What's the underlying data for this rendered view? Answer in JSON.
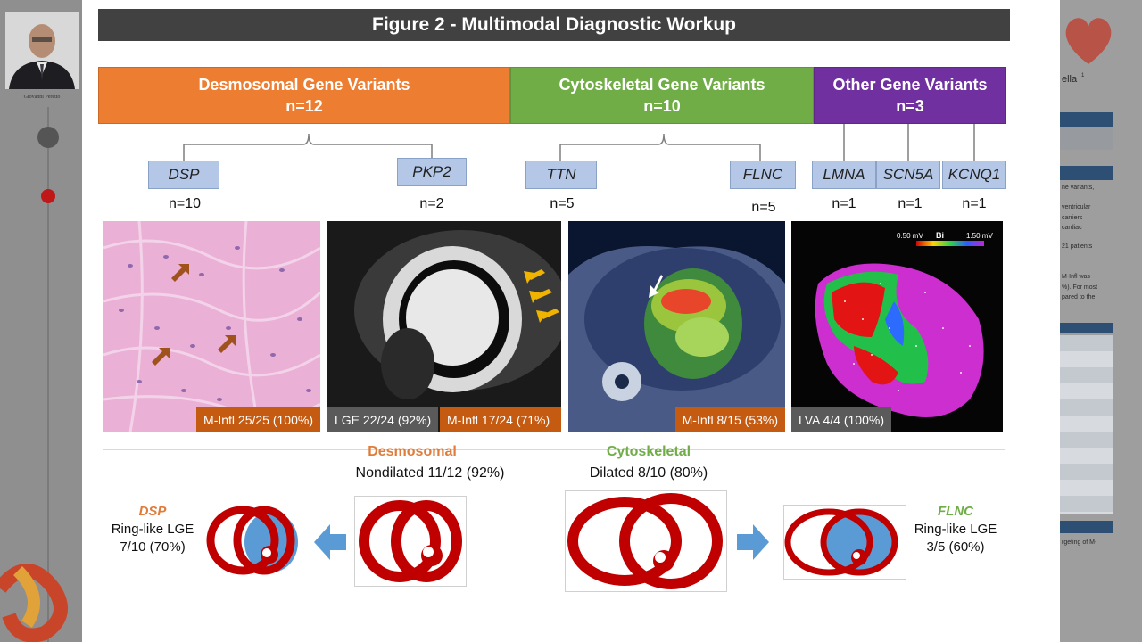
{
  "sidebar": {
    "presenter_name": "Giovanni Peretto"
  },
  "right_strip": {
    "fragments": [
      "ella",
      "1",
      "ne variants,",
      "ventricular",
      "carriers",
      "cardiac",
      "21 patients",
      "M-Infl was",
      "%). For most",
      "pared to the",
      "rgeting of M-"
    ]
  },
  "slide": {
    "title": "Figure 2 - Multimodal Diagnostic Workup",
    "categories": [
      {
        "name": "Desmosomal Gene Variants",
        "n": "n=12",
        "color": "#ed7d31"
      },
      {
        "name": "Cytoskeletal Gene Variants",
        "n": "n=10",
        "color": "#70ad47"
      },
      {
        "name": "Other Gene Variants",
        "n": "n=3",
        "color": "#7030a0"
      }
    ],
    "genes": [
      {
        "name": "DSP",
        "n": "n=10"
      },
      {
        "name": "PKP2",
        "n": "n=2"
      },
      {
        "name": "TTN",
        "n": "n=5"
      },
      {
        "name": "FLNC",
        "n": "n=5"
      },
      {
        "name": "LMNA",
        "n": "n=1"
      },
      {
        "name": "SCN5A",
        "n": "n=1"
      },
      {
        "name": "KCNQ1",
        "n": "n=1"
      }
    ],
    "panels": {
      "histology": {
        "badge": "M-Infl 25/25 (100%)"
      },
      "cmr": {
        "badge_lge": "LGE 22/24 (92%)",
        "badge_minfl": "M-Infl 17/24 (71%)"
      },
      "pet": {
        "badge": "M-Infl 8/15 (53%)"
      },
      "map": {
        "badge": "LVA 4/4 (100%)",
        "scale_min": "0.50 mV",
        "scale_label": "Bi",
        "scale_max": "1.50 mV"
      }
    },
    "desmosomal": {
      "heading": "Desmosomal",
      "text": "Nondilated 11/12 (92%)",
      "side_gene": "DSP",
      "side_line1": "Ring-like LGE",
      "side_line2": "7/10 (70%)"
    },
    "cytoskeletal": {
      "heading": "Cytoskeletal",
      "text": "Dilated 8/10 (80%)",
      "side_gene": "FLNC",
      "side_line1": "Ring-like LGE",
      "side_line2": "3/5 (60%)"
    },
    "colors": {
      "desmosomal": "#ed7d31",
      "cytoskeletal": "#70ad47",
      "other": "#7030a0",
      "gene_box": "#b4c7e7",
      "badge": "#c55a11",
      "heart": "#c00000",
      "arrow": "#5b9bd5"
    }
  }
}
